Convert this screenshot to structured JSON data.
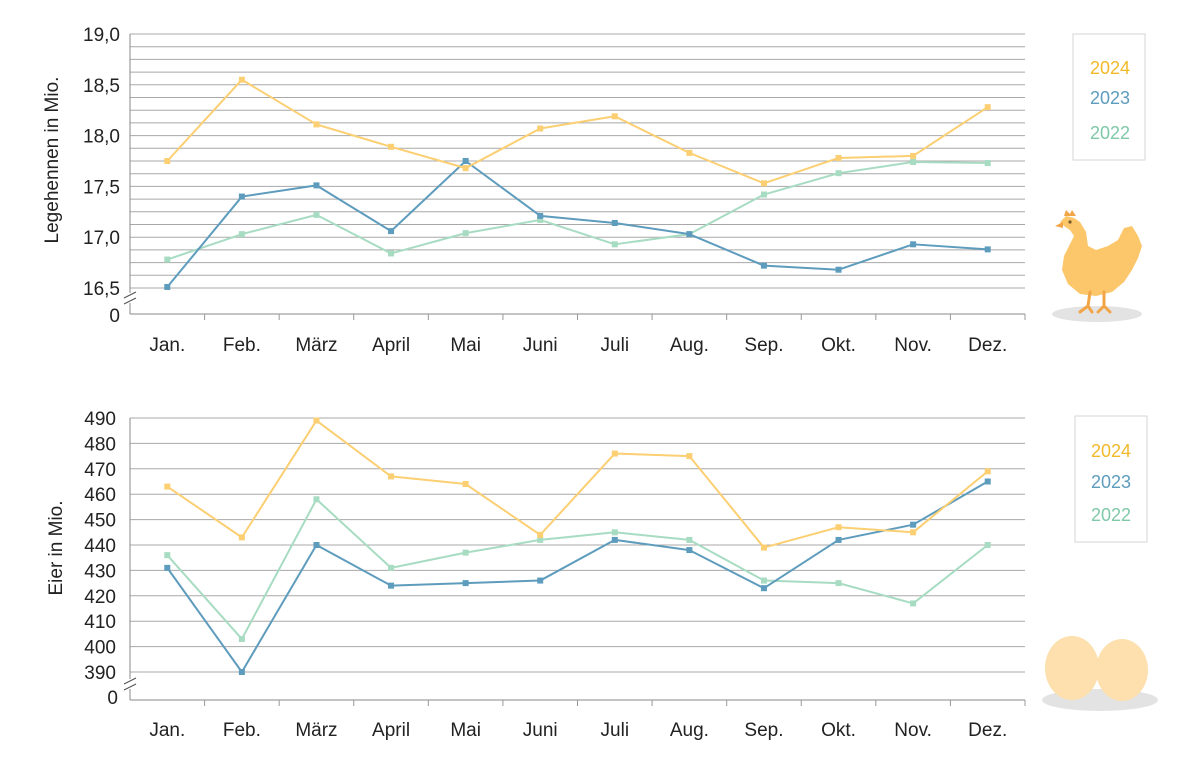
{
  "months": [
    "Jan.",
    "Feb.",
    "März",
    "April",
    "Mai",
    "Juni",
    "Juli",
    "Aug.",
    "Sep.",
    "Okt.",
    "Nov.",
    "Dez."
  ],
  "colors": {
    "2024": "#fbcf72",
    "2023": "#5e9cbd",
    "2022": "#a7dcc2"
  },
  "chart_data": [
    {
      "type": "line",
      "ylabel": "Legehennen in Mio.",
      "ylim": [
        16.5,
        19.0
      ],
      "axis_break": true,
      "zero_label": "0",
      "y_ticks": [
        {
          "value": 16.5,
          "label": "16,5"
        },
        {
          "value": 17.0,
          "label": "17,0"
        },
        {
          "value": 17.5,
          "label": "17,5"
        },
        {
          "value": 18.0,
          "label": "18,0"
        },
        {
          "value": 18.5,
          "label": "18,5"
        },
        {
          "value": 19.0,
          "label": "19,0"
        }
      ],
      "grid_step": 0.125,
      "categories": [
        "Jan.",
        "Feb.",
        "März",
        "April",
        "Mai",
        "Juni",
        "Juli",
        "Aug.",
        "Sep.",
        "Okt.",
        "Nov.",
        "Dez."
      ],
      "legend_position": "right",
      "series": [
        {
          "name": "2024",
          "color": "#fbcf72",
          "values": [
            17.75,
            18.55,
            18.11,
            17.89,
            17.68,
            18.07,
            18.19,
            17.83,
            17.53,
            17.78,
            17.8,
            18.28
          ]
        },
        {
          "name": "2023",
          "color": "#5e9cbd",
          "values": [
            16.51,
            17.4,
            17.51,
            17.06,
            17.75,
            17.21,
            17.14,
            17.03,
            16.72,
            16.68,
            16.93,
            16.88
          ]
        },
        {
          "name": "2022",
          "color": "#a7dcc2",
          "values": [
            16.78,
            17.03,
            17.22,
            16.84,
            17.04,
            17.17,
            16.93,
            17.03,
            17.42,
            17.63,
            17.74,
            17.73
          ]
        }
      ]
    },
    {
      "type": "line",
      "ylabel": "Eier in Mio.",
      "ylim": [
        390,
        490
      ],
      "axis_break": true,
      "zero_label": "0",
      "y_ticks": [
        {
          "value": 390,
          "label": "390"
        },
        {
          "value": 400,
          "label": "400"
        },
        {
          "value": 410,
          "label": "410"
        },
        {
          "value": 420,
          "label": "420"
        },
        {
          "value": 430,
          "label": "430"
        },
        {
          "value": 440,
          "label": "440"
        },
        {
          "value": 450,
          "label": "450"
        },
        {
          "value": 460,
          "label": "460"
        },
        {
          "value": 470,
          "label": "470"
        },
        {
          "value": 480,
          "label": "480"
        },
        {
          "value": 490,
          "label": "490"
        }
      ],
      "grid_step": 10,
      "categories": [
        "Jan.",
        "Feb.",
        "März",
        "April",
        "Mai",
        "Juni",
        "Juli",
        "Aug.",
        "Sep.",
        "Okt.",
        "Nov.",
        "Dez."
      ],
      "legend_position": "right",
      "series": [
        {
          "name": "2024",
          "color": "#fbcf72",
          "values": [
            463,
            443,
            489,
            467,
            464,
            444,
            476,
            475,
            439,
            447,
            445,
            469
          ]
        },
        {
          "name": "2023",
          "color": "#5e9cbd",
          "values": [
            431,
            390,
            440,
            424,
            425,
            426,
            442,
            438,
            423,
            442,
            448,
            465
          ]
        },
        {
          "name": "2022",
          "color": "#a7dcc2",
          "values": [
            436,
            403,
            458,
            431,
            437,
            442,
            445,
            442,
            426,
            425,
            417,
            440
          ]
        }
      ]
    }
  ]
}
